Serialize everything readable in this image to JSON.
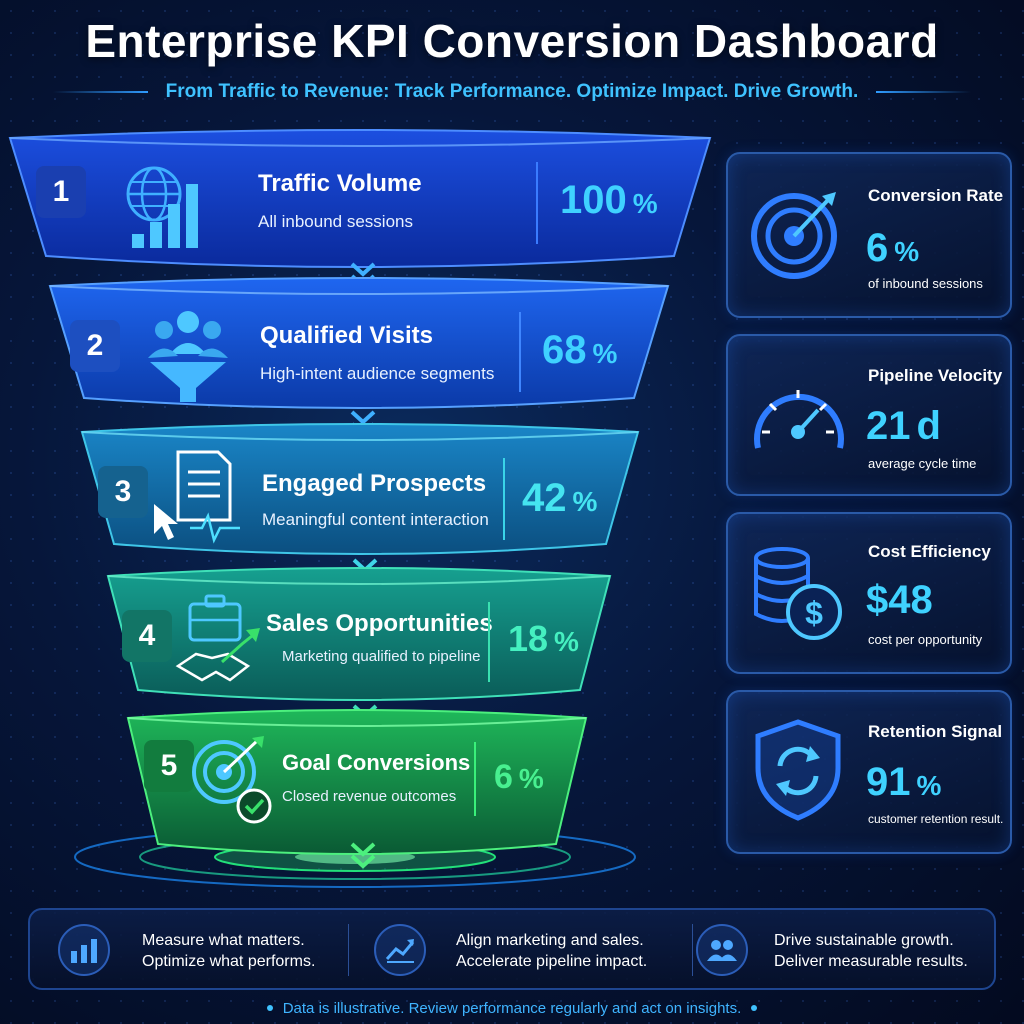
{
  "header": {
    "title": "Enterprise KPI Conversion Dashboard",
    "subtitle": "From Traffic to Revenue: Track Performance. Optimize Impact. Drive Growth."
  },
  "funnel": {
    "stages": [
      {
        "number": "1",
        "title": "Traffic Volume",
        "description": "All inbound sessions",
        "percent": 100,
        "percent_label": "100",
        "unit": "%",
        "icon": "globe-bar-chart-icon",
        "color": "#1e5bff"
      },
      {
        "number": "2",
        "title": "Qualified Visits",
        "description": "High-intent audience segments",
        "percent": 68,
        "percent_label": "68",
        "unit": "%",
        "icon": "audience-filter-icon",
        "color": "#1f74ff"
      },
      {
        "number": "3",
        "title": "Engaged Prospects",
        "description": "Meaningful content interaction",
        "percent": 42,
        "percent_label": "42",
        "unit": "%",
        "icon": "document-cursor-icon",
        "color": "#1a9fd0"
      },
      {
        "number": "4",
        "title": "Sales Opportunities",
        "description": "Marketing qualified to pipeline",
        "percent": 18,
        "percent_label": "18",
        "unit": "%",
        "icon": "briefcase-handshake-icon",
        "color": "#17b39a"
      },
      {
        "number": "5",
        "title": "Goal Conversions",
        "description": "Closed revenue outcomes",
        "percent": 6,
        "percent_label": "6",
        "unit": "%",
        "icon": "target-check-icon",
        "color": "#22c55e"
      }
    ]
  },
  "kpis": [
    {
      "title": "Conversion Rate",
      "value": "6",
      "unit": "%",
      "note": "of inbound sessions",
      "icon": "target-icon"
    },
    {
      "title": "Pipeline Velocity",
      "value": "21",
      "unit": "d",
      "note": "average cycle time",
      "icon": "speedometer-icon"
    },
    {
      "title": "Cost Efficiency",
      "value": "$48",
      "unit": "",
      "note": "cost per opportunity",
      "icon": "coins-dollar-icon"
    },
    {
      "title": "Retention Signal",
      "value": "91",
      "unit": "%",
      "note": "customer retention result.",
      "icon": "shield-refresh-icon"
    }
  ],
  "bottom": [
    {
      "line1": "Measure what matters.",
      "line2": "Optimize what performs.",
      "icon": "bar-chart-icon"
    },
    {
      "line1": "Align marketing and sales.",
      "line2": "Accelerate pipeline impact.",
      "icon": "trend-up-icon"
    },
    {
      "line1": "Drive sustainable growth.",
      "line2": "Deliver measurable results.",
      "icon": "team-icon"
    }
  ],
  "footnote": "Data is illustrative. Review performance regularly and act on insights.",
  "colors": {
    "accent": "#3fc2ff",
    "background": "#06163a",
    "stage_blue": "#1e5bff",
    "stage_green": "#22c55e"
  }
}
